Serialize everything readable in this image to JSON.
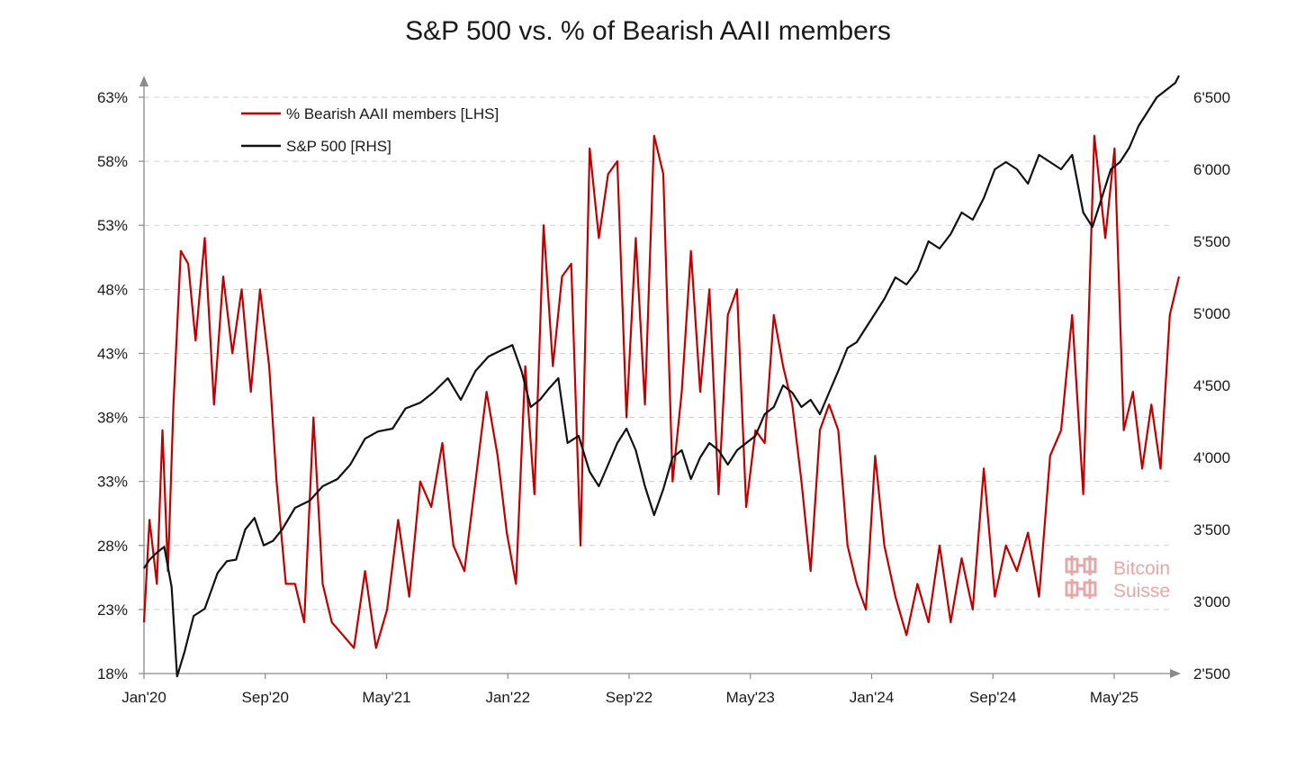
{
  "chart_data": {
    "type": "line",
    "title": "S&P 500 vs. % of Bearish AAII members",
    "x_ticks": [
      "Jan'20",
      "Sep'20",
      "May'21",
      "Jan'22",
      "Sep'22",
      "May'23",
      "Jan'24",
      "Sep'24",
      "May'25"
    ],
    "x_range": [
      2020.0,
      2025.62
    ],
    "left_axis": {
      "ticks": [
        "18%",
        "23%",
        "28%",
        "33%",
        "38%",
        "43%",
        "48%",
        "53%",
        "58%",
        "63%"
      ],
      "ylim": [
        18,
        63
      ],
      "grid": true
    },
    "right_axis": {
      "ticks": [
        "2'500",
        "3'000",
        "3'500",
        "4'000",
        "4'500",
        "5'000",
        "5'500",
        "6'000",
        "6'500"
      ],
      "ylim": [
        2500,
        6500
      ]
    },
    "legend": {
      "placement": "top-left"
    },
    "series": [
      {
        "name": "% Bearish AAII members [LHS]",
        "axis": "left",
        "color": "#c00000",
        "x": [
          2020.0,
          2020.03,
          2020.07,
          2020.1,
          2020.13,
          2020.16,
          2020.2,
          2020.24,
          2020.28,
          2020.33,
          2020.38,
          2020.43,
          2020.48,
          2020.53,
          2020.58,
          2020.63,
          2020.68,
          2020.72,
          2020.77,
          2020.82,
          2020.87,
          2020.92,
          2020.97,
          2021.02,
          2021.08,
          2021.14,
          2021.2,
          2021.26,
          2021.32,
          2021.38,
          2021.44,
          2021.5,
          2021.56,
          2021.62,
          2021.68,
          2021.74,
          2021.8,
          2021.86,
          2021.92,
          2021.97,
          2022.02,
          2022.07,
          2022.12,
          2022.17,
          2022.22,
          2022.27,
          2022.32,
          2022.37,
          2022.42,
          2022.47,
          2022.52,
          2022.57,
          2022.62,
          2022.67,
          2022.72,
          2022.77,
          2022.82,
          2022.87,
          2022.92,
          2022.97,
          2023.02,
          2023.07,
          2023.12,
          2023.17,
          2023.22,
          2023.27,
          2023.32,
          2023.37,
          2023.42,
          2023.47,
          2023.52,
          2023.57,
          2023.62,
          2023.67,
          2023.72,
          2023.77,
          2023.82,
          2023.87,
          2023.92,
          2023.97,
          2024.02,
          2024.08,
          2024.14,
          2024.2,
          2024.26,
          2024.32,
          2024.38,
          2024.44,
          2024.5,
          2024.56,
          2024.62,
          2024.68,
          2024.74,
          2024.8,
          2024.86,
          2024.92,
          2024.98,
          2025.04,
          2025.1,
          2025.16,
          2025.22,
          2025.27,
          2025.32,
          2025.37,
          2025.42,
          2025.47,
          2025.52,
          2025.57,
          2025.62
        ],
        "values": [
          22,
          30,
          25,
          37,
          26,
          39,
          51,
          50,
          44,
          52,
          39,
          49,
          43,
          48,
          40,
          48,
          42,
          33,
          25,
          25,
          22,
          38,
          25,
          22,
          21,
          20,
          26,
          20,
          23,
          30,
          24,
          33,
          31,
          36,
          28,
          26,
          33,
          40,
          35,
          29,
          25,
          42,
          32,
          53,
          42,
          49,
          50,
          28,
          59,
          52,
          57,
          58,
          38,
          52,
          39,
          60,
          57,
          33,
          40,
          51,
          40,
          48,
          32,
          46,
          48,
          31,
          37,
          36,
          46,
          42,
          39,
          33,
          26,
          37,
          39,
          37,
          28,
          25,
          23,
          35,
          28,
          24,
          21,
          25,
          22,
          28,
          22,
          27,
          23,
          34,
          24,
          28,
          26,
          29,
          24,
          35,
          37,
          46,
          32,
          60,
          52,
          59,
          37,
          40,
          34,
          39,
          34,
          46,
          49
        ]
      },
      {
        "name": "S&P 500 [RHS]",
        "axis": "right",
        "color": "#111111",
        "x": [
          2020.0,
          2020.03,
          2020.07,
          2020.11,
          2020.15,
          2020.18,
          2020.22,
          2020.27,
          2020.33,
          2020.4,
          2020.45,
          2020.5,
          2020.55,
          2020.6,
          2020.65,
          2020.7,
          2020.75,
          2020.82,
          2020.9,
          2020.97,
          2021.05,
          2021.12,
          2021.2,
          2021.27,
          2021.35,
          2021.42,
          2021.5,
          2021.57,
          2021.65,
          2021.72,
          2021.8,
          2021.87,
          2021.95,
          2022.0,
          2022.05,
          2022.1,
          2022.15,
          2022.2,
          2022.25,
          2022.3,
          2022.36,
          2022.42,
          2022.47,
          2022.52,
          2022.57,
          2022.62,
          2022.67,
          2022.72,
          2022.77,
          2022.82,
          2022.87,
          2022.92,
          2022.97,
          2023.02,
          2023.07,
          2023.12,
          2023.17,
          2023.22,
          2023.27,
          2023.32,
          2023.37,
          2023.42,
          2023.47,
          2023.52,
          2023.57,
          2023.62,
          2023.67,
          2023.72,
          2023.77,
          2023.82,
          2023.87,
          2023.92,
          2023.97,
          2024.02,
          2024.08,
          2024.14,
          2024.2,
          2024.26,
          2024.32,
          2024.38,
          2024.44,
          2024.5,
          2024.56,
          2024.62,
          2024.68,
          2024.74,
          2024.8,
          2024.86,
          2024.92,
          2024.98,
          2025.04,
          2025.1,
          2025.15,
          2025.2,
          2025.25,
          2025.3,
          2025.35,
          2025.4,
          2025.45,
          2025.5,
          2025.55,
          2025.6,
          2025.62
        ],
        "values": [
          3230,
          3290,
          3340,
          3380,
          3100,
          2480,
          2650,
          2900,
          2950,
          3200,
          3280,
          3290,
          3500,
          3580,
          3390,
          3420,
          3500,
          3650,
          3700,
          3800,
          3850,
          3950,
          4130,
          4180,
          4200,
          4340,
          4380,
          4450,
          4550,
          4400,
          4600,
          4700,
          4750,
          4780,
          4600,
          4350,
          4400,
          4480,
          4550,
          4100,
          4150,
          3900,
          3800,
          3950,
          4100,
          4200,
          4050,
          3800,
          3600,
          3780,
          4000,
          4050,
          3850,
          4000,
          4100,
          4050,
          3950,
          4050,
          4100,
          4150,
          4300,
          4350,
          4500,
          4450,
          4350,
          4400,
          4300,
          4450,
          4600,
          4760,
          4800,
          4900,
          5000,
          5100,
          5250,
          5200,
          5300,
          5500,
          5450,
          5550,
          5700,
          5650,
          5800,
          6000,
          6050,
          6000,
          5900,
          6100,
          6050,
          6000,
          6100,
          5700,
          5600,
          5800,
          6000,
          6050,
          6150,
          6300,
          6400,
          6500,
          6550,
          6600,
          6650
        ]
      }
    ]
  },
  "watermark": {
    "line1": "Bitcoin",
    "line2": "Suisse"
  }
}
